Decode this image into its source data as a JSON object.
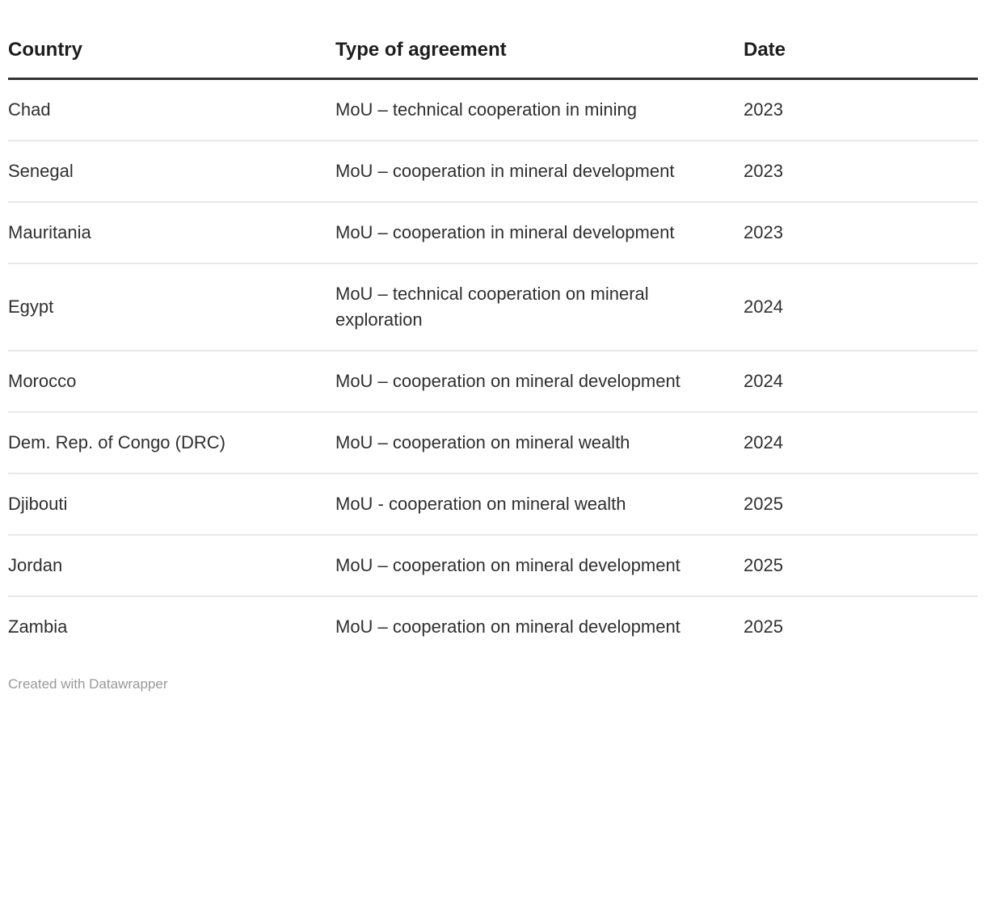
{
  "chart_data": {
    "type": "table",
    "columns": [
      {
        "key": "country",
        "label": "Country"
      },
      {
        "key": "agreement",
        "label": "Type of agreement"
      },
      {
        "key": "date",
        "label": "Date"
      }
    ],
    "rows": [
      {
        "country": "Chad",
        "agreement": "MoU – technical cooperation in mining",
        "date": "2023"
      },
      {
        "country": "Senegal",
        "agreement": "MoU – cooperation in mineral development",
        "date": "2023"
      },
      {
        "country": "Mauritania",
        "agreement": "MoU – cooperation in mineral development",
        "date": "2023"
      },
      {
        "country": "Egypt",
        "agreement": "MoU – technical cooperation on mineral exploration",
        "date": "2024"
      },
      {
        "country": "Morocco",
        "agreement": "MoU – cooperation on mineral development",
        "date": "2024"
      },
      {
        "country": "Dem. Rep. of Congo (DRC)",
        "agreement": "MoU – cooperation on mineral wealth",
        "date": "2024"
      },
      {
        "country": "Djibouti",
        "agreement": "MoU - cooperation on mineral wealth",
        "date": "2025"
      },
      {
        "country": "Jordan",
        "agreement": "MoU – cooperation on mineral development",
        "date": "2025"
      },
      {
        "country": "Zambia",
        "agreement": "MoU – cooperation on mineral development",
        "date": "2025"
      }
    ],
    "layout": {
      "grid": "horizontal-row-separators",
      "header_style": "bold-with-thick-bottom-border"
    }
  },
  "footer": {
    "attribution": "Created with Datawrapper"
  },
  "colors": {
    "background": "#ffffff",
    "text": "#2f2f2f",
    "header_text": "#1d1d1d",
    "header_border": "#333333",
    "row_border": "#e9e9e9",
    "footer_text": "#999999"
  }
}
